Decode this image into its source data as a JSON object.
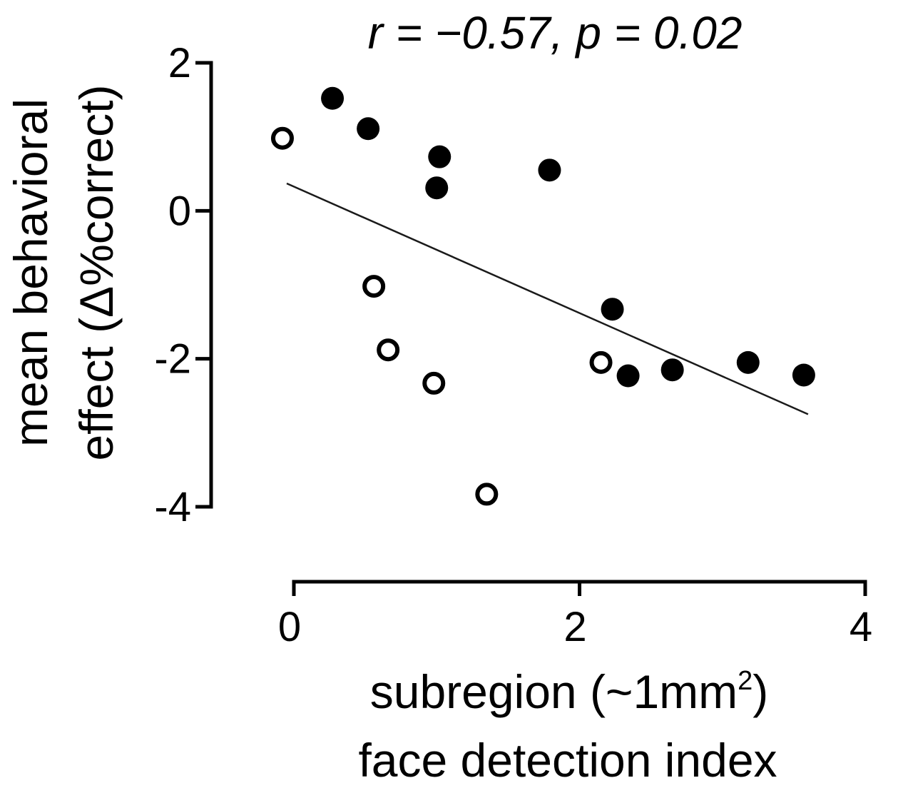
{
  "chart_data": {
    "type": "scatter",
    "title": "r = −0.57, p = 0.02",
    "xlabel_line1": "subregion (~1mm",
    "xlabel_sup": "2",
    "xlabel_line1_end": ")",
    "xlabel_line2": "face detection index",
    "ylabel_line1": "mean behavioral",
    "ylabel_line2": "effect (Δ%correct)",
    "xlim": [
      0,
      4
    ],
    "ylim": [
      -4,
      2
    ],
    "xticks": [
      0,
      2,
      4
    ],
    "xtick_labels": [
      "0",
      "2",
      "4"
    ],
    "yticks": [
      -4,
      -2,
      0,
      2
    ],
    "ytick_labels": [
      "-4",
      "-2",
      "0",
      "2"
    ],
    "grid": false,
    "legend": "none",
    "series": [
      {
        "marker": "filled-circle",
        "color": "#000000",
        "points": [
          {
            "x": 0.27,
            "y": 1.52
          },
          {
            "x": 0.52,
            "y": 1.11
          },
          {
            "x": 1.02,
            "y": 0.73
          },
          {
            "x": 1.0,
            "y": 0.31
          },
          {
            "x": 1.79,
            "y": 0.55
          },
          {
            "x": 2.23,
            "y": -1.33
          },
          {
            "x": 2.34,
            "y": -2.23
          },
          {
            "x": 2.65,
            "y": -2.15
          },
          {
            "x": 3.18,
            "y": -2.05
          },
          {
            "x": 3.57,
            "y": -2.22
          }
        ]
      },
      {
        "marker": "open-circle",
        "color": "#000000",
        "points": [
          {
            "x": -0.08,
            "y": 0.98
          },
          {
            "x": 0.56,
            "y": -1.02
          },
          {
            "x": 0.66,
            "y": -1.88
          },
          {
            "x": 0.98,
            "y": -2.33
          },
          {
            "x": 2.15,
            "y": -2.05
          },
          {
            "x": 1.35,
            "y": -3.83
          }
        ]
      }
    ],
    "fit_line": {
      "x": [
        -0.05,
        3.6
      ],
      "y": [
        0.37,
        -2.75
      ]
    }
  }
}
